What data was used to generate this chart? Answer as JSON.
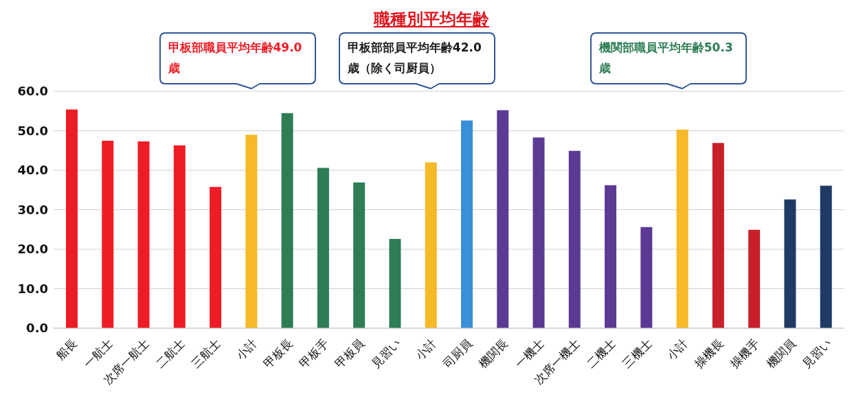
{
  "chart_data": {
    "type": "bar",
    "title": "職種別平均年齢",
    "categories": [
      "船長",
      "一航士",
      "次席一航士",
      "二航士",
      "三航士",
      "小計",
      "甲板長",
      "甲板手",
      "甲板員",
      "見習い",
      "小計",
      "司厨員",
      "機関長",
      "一機士",
      "次席一機士",
      "二機士",
      "三機士",
      "小計",
      "操機長",
      "操機手",
      "機関員",
      "見習い"
    ],
    "values": [
      55.4,
      47.5,
      47.3,
      46.3,
      35.8,
      49.0,
      54.5,
      40.6,
      36.9,
      22.6,
      42.0,
      52.6,
      55.2,
      48.3,
      44.9,
      36.2,
      25.6,
      50.3,
      46.9,
      24.9,
      32.6,
      36.1
    ],
    "colors": [
      "#ee1c25",
      "#ee1c25",
      "#ee1c25",
      "#ee1c25",
      "#ee1c25",
      "#f6b928",
      "#2e7d55",
      "#2e7d55",
      "#2e7d55",
      "#2e7d55",
      "#f6b928",
      "#3a8fd8",
      "#5b3a94",
      "#5b3a94",
      "#5b3a94",
      "#5b3a94",
      "#5b3a94",
      "#f6b928",
      "#c8202a",
      "#c8202a",
      "#1f3a64",
      "#1f3a64"
    ],
    "ylim": [
      0,
      60
    ],
    "yticks": [
      {
        "value": 0,
        "label": "0.0"
      },
      {
        "value": 10,
        "label": "10.0"
      },
      {
        "value": 20,
        "label": "20.0"
      },
      {
        "value": 30,
        "label": "30.0"
      },
      {
        "value": 40,
        "label": "40.0"
      },
      {
        "value": 50,
        "label": "50.0"
      },
      {
        "value": 60,
        "label": "60.0"
      }
    ],
    "grid": "y",
    "annotations": [
      "甲板部職員平均年齢49.0歳",
      "甲板部部員平均年齢42.0歳（除く司厨員）",
      "機関部職員平均年齢50.3歳"
    ]
  }
}
